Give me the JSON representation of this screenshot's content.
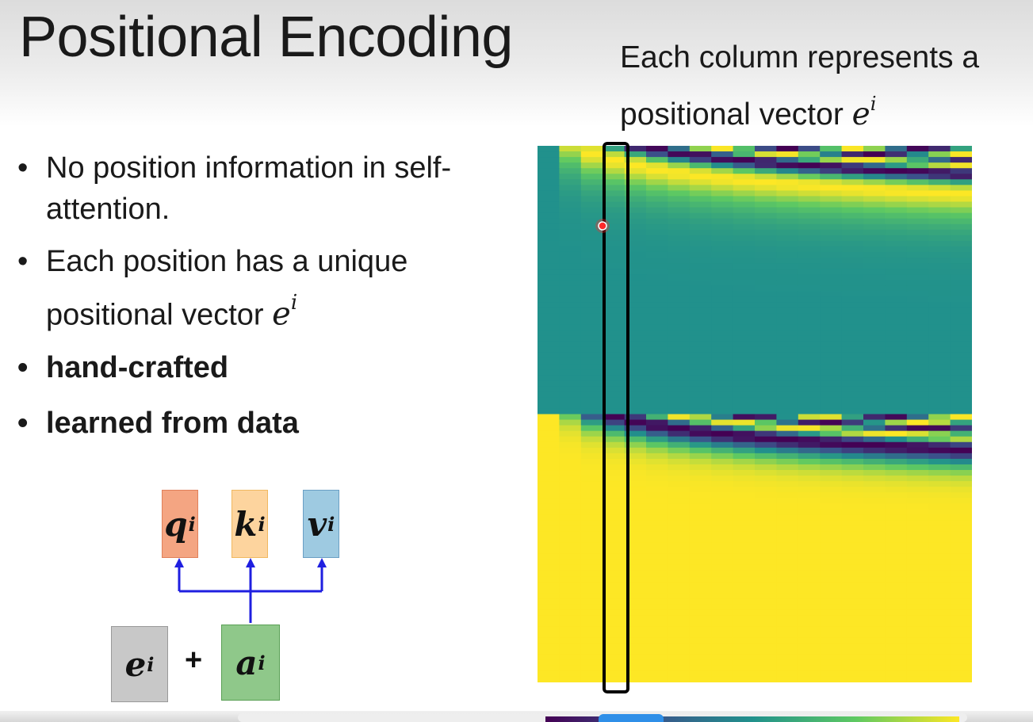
{
  "slide": {
    "title": "Positional Encoding",
    "caption": {
      "text": "Each column represents a positional vector ",
      "math_symbol": "e",
      "math_superscript": "i"
    },
    "bullets": [
      {
        "text": "No position information in self-attention.",
        "bold": false
      },
      {
        "text": "Each position has a unique positional vector ",
        "bold": false,
        "math_symbol": "e",
        "math_superscript": "i"
      },
      {
        "text": "hand-crafted",
        "bold": true
      },
      {
        "text": "learned from data",
        "bold": true
      }
    ]
  },
  "diagram": {
    "outputs": [
      {
        "symbol": "q",
        "superscript": "i",
        "color": "#f4a582"
      },
      {
        "symbol": "k",
        "superscript": "i",
        "color": "#fdd49e"
      },
      {
        "symbol": "v",
        "superscript": "i",
        "color": "#9ecae1"
      }
    ],
    "inputs": [
      {
        "symbol": "e",
        "superscript": "i",
        "color": "#c8c8c8"
      },
      {
        "symbol": "a",
        "superscript": "i",
        "color": "#8fc88a"
      }
    ],
    "operator": "+",
    "arrow_color": "#1f1fe0"
  },
  "heatmap": {
    "colormap": "viridis",
    "highlighted_column_color": "#000000",
    "cursor_color": "#ff2a2a"
  }
}
